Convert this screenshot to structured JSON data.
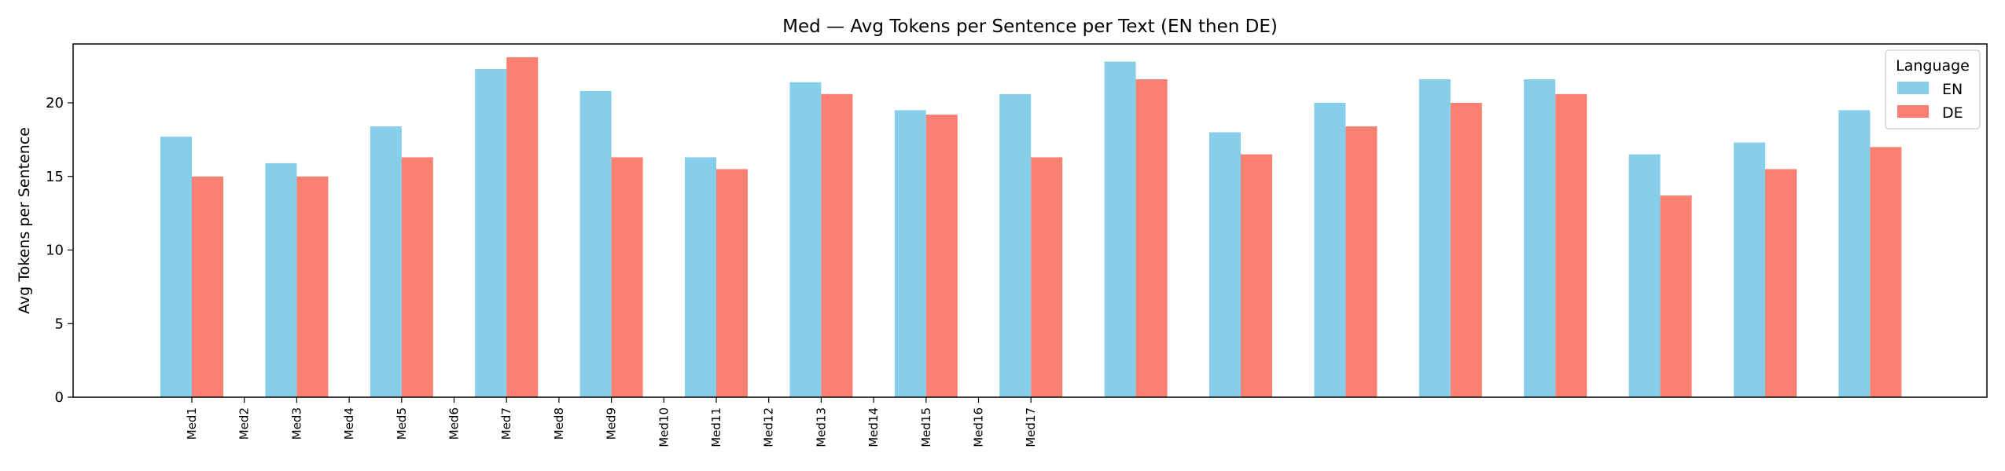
{
  "chart_data": {
    "type": "bar",
    "title": "Med — Avg Tokens per Sentence per Text (EN then DE)",
    "xlabel": "",
    "ylabel": "Avg Tokens per Sentence",
    "ylim": [
      0,
      24
    ],
    "yticks": [
      0,
      5,
      10,
      15,
      20
    ],
    "x_tick_labels": [
      "Med1",
      "Med2",
      "Med3",
      "Med4",
      "Med5",
      "Med6",
      "Med7",
      "Med8",
      "Med9",
      "Med10",
      "Med11",
      "Med12",
      "Med13",
      "Med14",
      "Med15",
      "Med16",
      "Med17"
    ],
    "group_count": 17,
    "grid": false,
    "legend": {
      "title": "Language",
      "placement": "top-right"
    },
    "series": [
      {
        "name": "EN",
        "color": "#87CEEB",
        "values": [
          17.7,
          15.9,
          18.4,
          22.3,
          20.8,
          16.3,
          21.4,
          19.5,
          20.6,
          22.8,
          18.0,
          20.0,
          21.6,
          21.6,
          16.5,
          17.3,
          19.5
        ]
      },
      {
        "name": "DE",
        "color": "#FA8072",
        "values": [
          15.0,
          15.0,
          16.3,
          23.1,
          16.3,
          15.5,
          20.6,
          19.2,
          16.3,
          21.6,
          16.5,
          18.4,
          20.0,
          20.6,
          13.7,
          15.5,
          17.0
        ]
      }
    ]
  }
}
